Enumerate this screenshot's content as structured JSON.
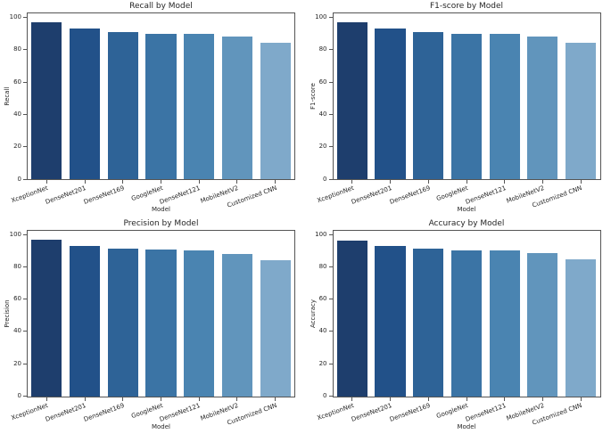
{
  "figure": {
    "background": "#ffffff",
    "text_color": "#262626",
    "spine_color": "#555555"
  },
  "chart_data": [
    {
      "type": "bar",
      "title": "Recall by Model",
      "xlabel": "Model",
      "ylabel": "Recall",
      "categories": [
        "XceptionNet",
        "DenseNet201",
        "DenseNet169",
        "GoogleNet",
        "DenseNet121",
        "MobileNetV2",
        "Customized CNN"
      ],
      "values": [
        96.9,
        92.9,
        91.0,
        90.0,
        90.0,
        88.2,
        84.2
      ],
      "ylim": [
        0,
        102.5
      ],
      "yticks": [
        0,
        20,
        40,
        60,
        80,
        100
      ],
      "bar_colors": [
        "#1e3e6d",
        "#225189",
        "#2e6397",
        "#3b74a5",
        "#4a84b1",
        "#6195bc",
        "#7fa9ca"
      ],
      "grid": false,
      "legend": false,
      "xtick_rotation": 20
    },
    {
      "type": "bar",
      "title": "F1-score by Model",
      "xlabel": "Model",
      "ylabel": "F1-score",
      "categories": [
        "XceptionNet",
        "DenseNet201",
        "DenseNet169",
        "GoogleNet",
        "DenseNet121",
        "MobileNetV2",
        "Customized CNN"
      ],
      "values": [
        96.9,
        92.9,
        91.0,
        90.0,
        90.0,
        88.2,
        84.1
      ],
      "ylim": [
        0,
        102.5
      ],
      "yticks": [
        0,
        20,
        40,
        60,
        80,
        100
      ],
      "bar_colors": [
        "#1e3e6d",
        "#225189",
        "#2e6397",
        "#3b74a5",
        "#4a84b1",
        "#6195bc",
        "#7fa9ca"
      ],
      "grid": false,
      "legend": false,
      "xtick_rotation": 20
    },
    {
      "type": "bar",
      "title": "Precision by Model",
      "xlabel": "Model",
      "ylabel": "Precision",
      "categories": [
        "XceptionNet",
        "DenseNet201",
        "DenseNet169",
        "GoogleNet",
        "DenseNet121",
        "MobileNetV2",
        "Customized CNN"
      ],
      "values": [
        96.9,
        93.0,
        91.0,
        90.9,
        90.0,
        88.0,
        84.0
      ],
      "ylim": [
        0,
        102.5
      ],
      "yticks": [
        0,
        20,
        40,
        60,
        80,
        100
      ],
      "bar_colors": [
        "#1e3e6d",
        "#225189",
        "#2e6397",
        "#3b74a5",
        "#4a84b1",
        "#6195bc",
        "#7fa9ca"
      ],
      "grid": false,
      "legend": false,
      "xtick_rotation": 20
    },
    {
      "type": "bar",
      "title": "Accuracy by Model",
      "xlabel": "Model",
      "ylabel": "Accuracy",
      "categories": [
        "XceptionNet",
        "DenseNet201",
        "DenseNet169",
        "GoogleNet",
        "DenseNet121",
        "MobileNetV2",
        "Customized CNN"
      ],
      "values": [
        96.4,
        92.8,
        91.0,
        90.1,
        89.9,
        88.3,
        84.4
      ],
      "ylim": [
        0,
        102.5
      ],
      "yticks": [
        0,
        20,
        40,
        60,
        80,
        100
      ],
      "bar_colors": [
        "#1e3e6d",
        "#225189",
        "#2e6397",
        "#3b74a5",
        "#4a84b1",
        "#6195bc",
        "#7fa9ca"
      ],
      "grid": false,
      "legend": false,
      "xtick_rotation": 20
    }
  ]
}
